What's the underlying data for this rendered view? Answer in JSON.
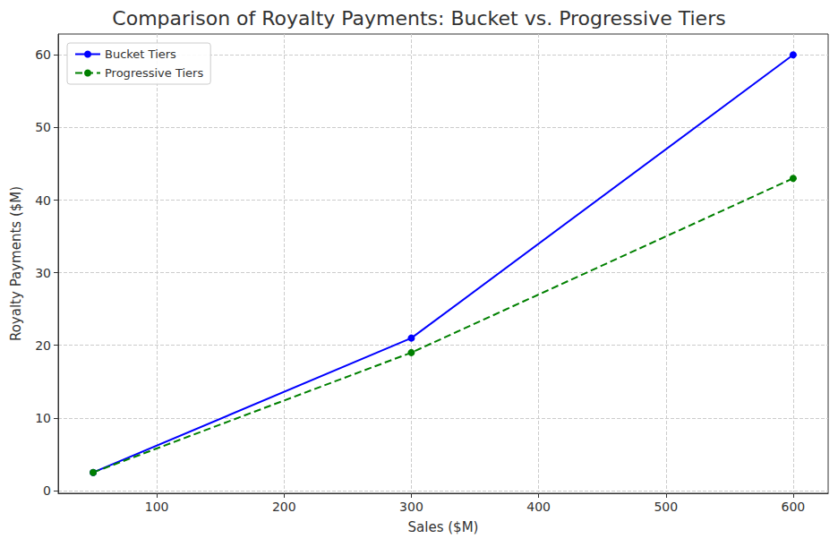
{
  "chart_data": {
    "type": "line",
    "title": "Comparison of Royalty Payments: Bucket vs. Progressive Tiers",
    "x_label": "Sales ($M)",
    "y_label": "Royalty Payments ($M)",
    "x": [
      50,
      300,
      600
    ],
    "series": [
      {
        "name": "Bucket Tiers",
        "color": "#0000ff",
        "marker": "circle",
        "line_style": "solid",
        "values": [
          2.5,
          21,
          60
        ]
      },
      {
        "name": "Progressive Tiers",
        "color": "#008000",
        "marker": "circle",
        "line_style": "dashed",
        "values": [
          2.5,
          19,
          43
        ]
      }
    ],
    "xlim": [
      22.5,
      627.5
    ],
    "xticks": [
      100,
      200,
      300,
      400,
      500,
      600
    ],
    "ylim": [
      -0.375,
      62.875
    ],
    "yticks": [
      0,
      10,
      20,
      30,
      40,
      50,
      60
    ],
    "grid": true,
    "legend": "upper left"
  }
}
